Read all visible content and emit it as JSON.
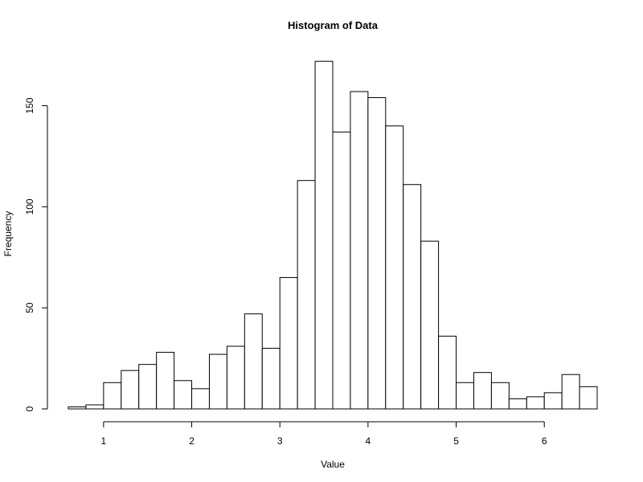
{
  "chart_data": {
    "type": "bar",
    "title": "Histogram of Data",
    "xlabel": "Value",
    "ylabel": "Frequency",
    "xlim": [
      0.6,
      6.6
    ],
    "ylim": [
      0,
      172
    ],
    "x_ticks": [
      "1",
      "2",
      "3",
      "4",
      "5",
      "6"
    ],
    "y_ticks": [
      "0",
      "50",
      "100",
      "150"
    ],
    "grid": false,
    "bins": [
      {
        "x0": 0.6,
        "x1": 0.8,
        "count": 1
      },
      {
        "x0": 0.8,
        "x1": 1.0,
        "count": 2
      },
      {
        "x0": 1.0,
        "x1": 1.2,
        "count": 13
      },
      {
        "x0": 1.2,
        "x1": 1.4,
        "count": 19
      },
      {
        "x0": 1.4,
        "x1": 1.6,
        "count": 22
      },
      {
        "x0": 1.6,
        "x1": 1.8,
        "count": 28
      },
      {
        "x0": 1.8,
        "x1": 2.0,
        "count": 14
      },
      {
        "x0": 2.0,
        "x1": 2.2,
        "count": 10
      },
      {
        "x0": 2.2,
        "x1": 2.4,
        "count": 27
      },
      {
        "x0": 2.4,
        "x1": 2.6,
        "count": 31
      },
      {
        "x0": 2.6,
        "x1": 2.8,
        "count": 47
      },
      {
        "x0": 2.8,
        "x1": 3.0,
        "count": 30
      },
      {
        "x0": 3.0,
        "x1": 3.2,
        "count": 65
      },
      {
        "x0": 3.2,
        "x1": 3.4,
        "count": 113
      },
      {
        "x0": 3.4,
        "x1": 3.6,
        "count": 172
      },
      {
        "x0": 3.6,
        "x1": 3.8,
        "count": 137
      },
      {
        "x0": 3.8,
        "x1": 4.0,
        "count": 157
      },
      {
        "x0": 4.0,
        "x1": 4.2,
        "count": 154
      },
      {
        "x0": 4.2,
        "x1": 4.4,
        "count": 140
      },
      {
        "x0": 4.4,
        "x1": 4.6,
        "count": 111
      },
      {
        "x0": 4.6,
        "x1": 4.8,
        "count": 83
      },
      {
        "x0": 4.8,
        "x1": 5.0,
        "count": 36
      },
      {
        "x0": 5.0,
        "x1": 5.2,
        "count": 13
      },
      {
        "x0": 5.2,
        "x1": 5.4,
        "count": 18
      },
      {
        "x0": 5.4,
        "x1": 5.6,
        "count": 13
      },
      {
        "x0": 5.6,
        "x1": 5.8,
        "count": 5
      },
      {
        "x0": 5.8,
        "x1": 6.0,
        "count": 6
      },
      {
        "x0": 6.0,
        "x1": 6.2,
        "count": 8
      },
      {
        "x0": 6.2,
        "x1": 6.4,
        "count": 17
      },
      {
        "x0": 6.4,
        "x1": 6.6,
        "count": 11
      }
    ]
  }
}
